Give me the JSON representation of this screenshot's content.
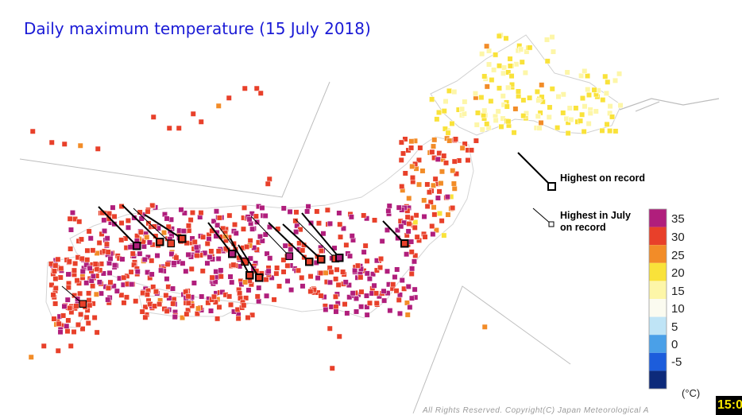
{
  "title": "Daily maximum temperature (15 July 2018)",
  "annotations": {
    "highest_record": "Highest on record",
    "highest_july_line1": "Highest in July",
    "highest_july_line2": "on record"
  },
  "legend": {
    "unit": "(°C)",
    "bins": [
      {
        "label": "35",
        "color": "#b01e7c"
      },
      {
        "label": "30",
        "color": "#e8402a"
      },
      {
        "label": "25",
        "color": "#f28c28"
      },
      {
        "label": "20",
        "color": "#f9e23a"
      },
      {
        "label": "15",
        "color": "#fdf6a8"
      },
      {
        "label": "10",
        "color": "#fbfbf0"
      },
      {
        "label": "5",
        "color": "#bfe4f6"
      },
      {
        "label": "0",
        "color": "#4aa0e8"
      },
      {
        "label": "-5",
        "color": "#1c5ddc"
      },
      {
        "label": "",
        "color": "#0d2a7a"
      }
    ]
  },
  "copyright": "All Rights Reserved. Copyright(C) Japan Meteorological A",
  "timestamp": "15:0",
  "colors": {
    "title": "#1a1ad6",
    "land_outline": "#c8c8c8",
    "record_marker": "#000000"
  }
}
